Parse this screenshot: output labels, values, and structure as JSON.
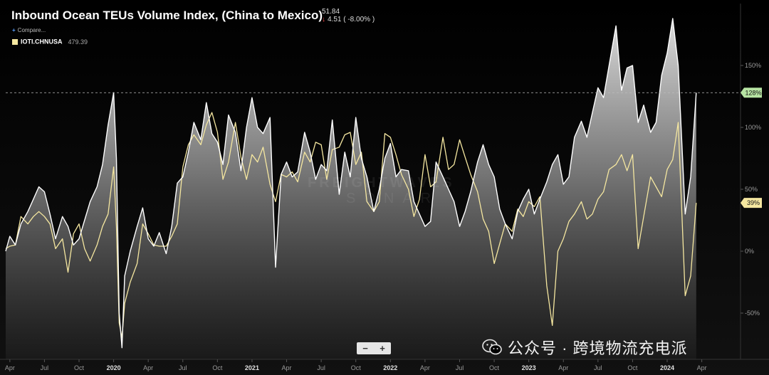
{
  "header": {
    "title": "Inbound Ocean TEUs Volume Index, (China to Mexico)",
    "value": "51.84",
    "change": "4.51 ( -8.00% )",
    "compare_label": "Compare...",
    "legend_symbol": "IOTI.CHNUSA",
    "legend_value": "479.39"
  },
  "controls": {
    "zoom_out": "−",
    "zoom_in": "+"
  },
  "watermark": {
    "text": "公众号 · 跨境物流充电派"
  },
  "brand": {
    "line1": "FREIGHTWAVES",
    "line2": "SONAR"
  },
  "colors": {
    "background": "#000000",
    "white_series": "#ffffff",
    "yellow_series": "#f5e7a0",
    "badge_green": "#b7e4a3",
    "badge_yellow": "#f5e7a0"
  },
  "chart_data": {
    "type": "area",
    "y_unit": "%",
    "ylim": [
      -60,
      200
    ],
    "y_ticks": [
      -50,
      0,
      50,
      100,
      150
    ],
    "y_tick_labels": [
      "-50%",
      "0%",
      "50%",
      "100%",
      "150%"
    ],
    "x_range": [
      2019.22,
      2024.53
    ],
    "x_ticks": [
      {
        "x": 2019.25,
        "label": "Apr"
      },
      {
        "x": 2019.5,
        "label": "Jul"
      },
      {
        "x": 2019.75,
        "label": "Oct"
      },
      {
        "x": 2020.0,
        "label": "2020"
      },
      {
        "x": 2020.25,
        "label": "Apr"
      },
      {
        "x": 2020.5,
        "label": "Jul"
      },
      {
        "x": 2020.75,
        "label": "Oct"
      },
      {
        "x": 2021.0,
        "label": "2021"
      },
      {
        "x": 2021.25,
        "label": "Apr"
      },
      {
        "x": 2021.5,
        "label": "Jul"
      },
      {
        "x": 2021.75,
        "label": "Oct"
      },
      {
        "x": 2022.0,
        "label": "2022"
      },
      {
        "x": 2022.25,
        "label": "Apr"
      },
      {
        "x": 2022.5,
        "label": "Jul"
      },
      {
        "x": 2022.75,
        "label": "Oct"
      },
      {
        "x": 2023.0,
        "label": "2023"
      },
      {
        "x": 2023.25,
        "label": "Apr"
      },
      {
        "x": 2023.5,
        "label": "Jul"
      },
      {
        "x": 2023.75,
        "label": "Oct"
      },
      {
        "x": 2024.0,
        "label": "2024"
      },
      {
        "x": 2024.25,
        "label": "Apr"
      }
    ],
    "reference_line": 128,
    "end_badges": [
      {
        "series": "white",
        "label": "128%",
        "value": 128
      },
      {
        "series": "yellow",
        "label": "39%",
        "value": 39
      }
    ],
    "series": [
      {
        "key": "white",
        "points": [
          [
            2019.22,
            0
          ],
          [
            2019.25,
            12
          ],
          [
            2019.29,
            5
          ],
          [
            2019.33,
            22
          ],
          [
            2019.38,
            32
          ],
          [
            2019.42,
            42
          ],
          [
            2019.46,
            52
          ],
          [
            2019.5,
            48
          ],
          [
            2019.54,
            30
          ],
          [
            2019.58,
            10
          ],
          [
            2019.63,
            28
          ],
          [
            2019.67,
            20
          ],
          [
            2019.71,
            5
          ],
          [
            2019.75,
            10
          ],
          [
            2019.79,
            25
          ],
          [
            2019.83,
            40
          ],
          [
            2019.88,
            52
          ],
          [
            2019.92,
            70
          ],
          [
            2019.96,
            102
          ],
          [
            2020.0,
            128
          ],
          [
            2020.02,
            75
          ],
          [
            2020.04,
            -50
          ],
          [
            2020.06,
            -78
          ],
          [
            2020.08,
            -20
          ],
          [
            2020.12,
            0
          ],
          [
            2020.17,
            20
          ],
          [
            2020.21,
            35
          ],
          [
            2020.25,
            10
          ],
          [
            2020.29,
            4
          ],
          [
            2020.33,
            15
          ],
          [
            2020.38,
            -2
          ],
          [
            2020.42,
            20
          ],
          [
            2020.46,
            55
          ],
          [
            2020.5,
            60
          ],
          [
            2020.54,
            80
          ],
          [
            2020.58,
            104
          ],
          [
            2020.63,
            90
          ],
          [
            2020.67,
            120
          ],
          [
            2020.71,
            95
          ],
          [
            2020.75,
            88
          ],
          [
            2020.79,
            70
          ],
          [
            2020.83,
            110
          ],
          [
            2020.88,
            96
          ],
          [
            2020.92,
            65
          ],
          [
            2020.96,
            100
          ],
          [
            2021.0,
            124
          ],
          [
            2021.04,
            100
          ],
          [
            2021.08,
            95
          ],
          [
            2021.13,
            108
          ],
          [
            2021.17,
            -13
          ],
          [
            2021.21,
            62
          ],
          [
            2021.25,
            72
          ],
          [
            2021.29,
            60
          ],
          [
            2021.33,
            64
          ],
          [
            2021.38,
            96
          ],
          [
            2021.42,
            80
          ],
          [
            2021.46,
            58
          ],
          [
            2021.5,
            70
          ],
          [
            2021.54,
            65
          ],
          [
            2021.58,
            106
          ],
          [
            2021.63,
            46
          ],
          [
            2021.67,
            80
          ],
          [
            2021.71,
            60
          ],
          [
            2021.75,
            108
          ],
          [
            2021.79,
            75
          ],
          [
            2021.83,
            60
          ],
          [
            2021.88,
            32
          ],
          [
            2021.92,
            50
          ],
          [
            2021.96,
            75
          ],
          [
            2022.0,
            87
          ],
          [
            2022.04,
            60
          ],
          [
            2022.08,
            66
          ],
          [
            2022.13,
            65
          ],
          [
            2022.17,
            40
          ],
          [
            2022.21,
            30
          ],
          [
            2022.25,
            20
          ],
          [
            2022.29,
            24
          ],
          [
            2022.33,
            72
          ],
          [
            2022.38,
            60
          ],
          [
            2022.42,
            50
          ],
          [
            2022.46,
            40
          ],
          [
            2022.5,
            20
          ],
          [
            2022.54,
            32
          ],
          [
            2022.58,
            48
          ],
          [
            2022.63,
            72
          ],
          [
            2022.67,
            86
          ],
          [
            2022.71,
            70
          ],
          [
            2022.75,
            60
          ],
          [
            2022.79,
            34
          ],
          [
            2022.83,
            22
          ],
          [
            2022.88,
            10
          ],
          [
            2022.92,
            32
          ],
          [
            2022.96,
            42
          ],
          [
            2023.0,
            50
          ],
          [
            2023.04,
            30
          ],
          [
            2023.08,
            42
          ],
          [
            2023.13,
            56
          ],
          [
            2023.17,
            70
          ],
          [
            2023.21,
            78
          ],
          [
            2023.25,
            54
          ],
          [
            2023.29,
            60
          ],
          [
            2023.33,
            92
          ],
          [
            2023.38,
            105
          ],
          [
            2023.42,
            92
          ],
          [
            2023.46,
            112
          ],
          [
            2023.5,
            132
          ],
          [
            2023.54,
            124
          ],
          [
            2023.58,
            150
          ],
          [
            2023.63,
            182
          ],
          [
            2023.67,
            130
          ],
          [
            2023.71,
            148
          ],
          [
            2023.75,
            150
          ],
          [
            2023.79,
            104
          ],
          [
            2023.83,
            118
          ],
          [
            2023.88,
            96
          ],
          [
            2023.92,
            104
          ],
          [
            2023.96,
            142
          ],
          [
            2024.0,
            160
          ],
          [
            2024.04,
            188
          ],
          [
            2024.08,
            150
          ],
          [
            2024.13,
            30
          ],
          [
            2024.17,
            60
          ],
          [
            2024.21,
            128
          ]
        ]
      },
      {
        "key": "yellow",
        "points": [
          [
            2019.22,
            2
          ],
          [
            2019.25,
            4
          ],
          [
            2019.29,
            5
          ],
          [
            2019.33,
            28
          ],
          [
            2019.38,
            22
          ],
          [
            2019.42,
            28
          ],
          [
            2019.46,
            32
          ],
          [
            2019.5,
            28
          ],
          [
            2019.54,
            22
          ],
          [
            2019.58,
            2
          ],
          [
            2019.63,
            10
          ],
          [
            2019.67,
            -17
          ],
          [
            2019.71,
            14
          ],
          [
            2019.75,
            22
          ],
          [
            2019.79,
            2
          ],
          [
            2019.83,
            -8
          ],
          [
            2019.88,
            5
          ],
          [
            2019.92,
            20
          ],
          [
            2019.96,
            30
          ],
          [
            2020.0,
            68
          ],
          [
            2020.02,
            20
          ],
          [
            2020.04,
            -58
          ],
          [
            2020.06,
            -70
          ],
          [
            2020.08,
            -42
          ],
          [
            2020.12,
            -25
          ],
          [
            2020.17,
            -10
          ],
          [
            2020.21,
            22
          ],
          [
            2020.25,
            14
          ],
          [
            2020.29,
            5
          ],
          [
            2020.33,
            4
          ],
          [
            2020.38,
            4
          ],
          [
            2020.42,
            12
          ],
          [
            2020.46,
            22
          ],
          [
            2020.5,
            68
          ],
          [
            2020.54,
            86
          ],
          [
            2020.58,
            94
          ],
          [
            2020.63,
            86
          ],
          [
            2020.67,
            102
          ],
          [
            2020.71,
            112
          ],
          [
            2020.75,
            96
          ],
          [
            2020.79,
            58
          ],
          [
            2020.83,
            72
          ],
          [
            2020.88,
            104
          ],
          [
            2020.92,
            76
          ],
          [
            2020.96,
            58
          ],
          [
            2021.0,
            78
          ],
          [
            2021.04,
            72
          ],
          [
            2021.08,
            84
          ],
          [
            2021.13,
            54
          ],
          [
            2021.17,
            40
          ],
          [
            2021.21,
            62
          ],
          [
            2021.25,
            60
          ],
          [
            2021.29,
            64
          ],
          [
            2021.33,
            56
          ],
          [
            2021.38,
            80
          ],
          [
            2021.42,
            72
          ],
          [
            2021.46,
            88
          ],
          [
            2021.5,
            86
          ],
          [
            2021.54,
            58
          ],
          [
            2021.58,
            82
          ],
          [
            2021.63,
            84
          ],
          [
            2021.67,
            94
          ],
          [
            2021.71,
            96
          ],
          [
            2021.75,
            70
          ],
          [
            2021.79,
            80
          ],
          [
            2021.83,
            40
          ],
          [
            2021.88,
            32
          ],
          [
            2021.92,
            40
          ],
          [
            2021.96,
            95
          ],
          [
            2022.0,
            92
          ],
          [
            2022.04,
            78
          ],
          [
            2022.08,
            62
          ],
          [
            2022.13,
            50
          ],
          [
            2022.17,
            28
          ],
          [
            2022.21,
            42
          ],
          [
            2022.25,
            78
          ],
          [
            2022.29,
            52
          ],
          [
            2022.33,
            56
          ],
          [
            2022.38,
            92
          ],
          [
            2022.42,
            66
          ],
          [
            2022.46,
            70
          ],
          [
            2022.5,
            90
          ],
          [
            2022.54,
            76
          ],
          [
            2022.58,
            62
          ],
          [
            2022.63,
            48
          ],
          [
            2022.67,
            26
          ],
          [
            2022.71,
            16
          ],
          [
            2022.75,
            -10
          ],
          [
            2022.79,
            6
          ],
          [
            2022.83,
            22
          ],
          [
            2022.88,
            16
          ],
          [
            2022.92,
            34
          ],
          [
            2022.96,
            28
          ],
          [
            2023.0,
            40
          ],
          [
            2023.04,
            36
          ],
          [
            2023.08,
            44
          ],
          [
            2023.13,
            -28
          ],
          [
            2023.17,
            -60
          ],
          [
            2023.21,
            0
          ],
          [
            2023.25,
            10
          ],
          [
            2023.29,
            24
          ],
          [
            2023.33,
            30
          ],
          [
            2023.38,
            40
          ],
          [
            2023.42,
            26
          ],
          [
            2023.46,
            30
          ],
          [
            2023.5,
            42
          ],
          [
            2023.54,
            48
          ],
          [
            2023.58,
            66
          ],
          [
            2023.63,
            70
          ],
          [
            2023.67,
            78
          ],
          [
            2023.71,
            65
          ],
          [
            2023.75,
            78
          ],
          [
            2023.79,
            2
          ],
          [
            2023.83,
            28
          ],
          [
            2023.88,
            60
          ],
          [
            2023.92,
            52
          ],
          [
            2023.96,
            44
          ],
          [
            2024.0,
            66
          ],
          [
            2024.04,
            74
          ],
          [
            2024.08,
            104
          ],
          [
            2024.13,
            -36
          ],
          [
            2024.17,
            -20
          ],
          [
            2024.21,
            39
          ]
        ]
      }
    ]
  }
}
